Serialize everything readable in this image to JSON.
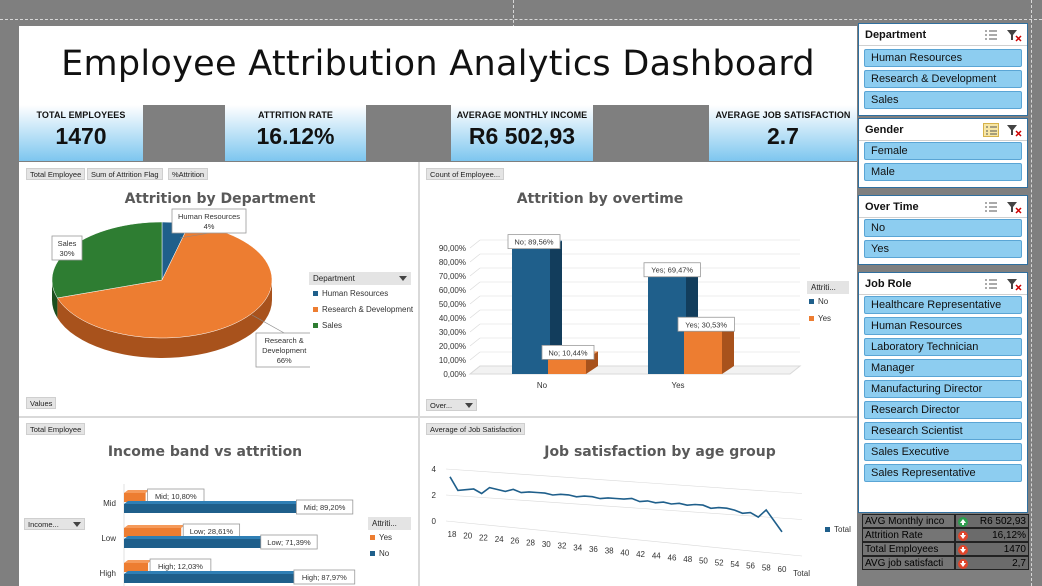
{
  "dashboard": {
    "title": "Employee Attribution Analytics Dashboard"
  },
  "kpis": [
    {
      "label": "TOTAL EMPLOYEES",
      "value": "1470"
    },
    {
      "label": "ATTRITION RATE",
      "value": "16.12%"
    },
    {
      "label": "AVERAGE MONTHLY INCOME",
      "value": "R6 502,93"
    },
    {
      "label": "AVERAGE JOB SATISFACTION",
      "value": "2.7"
    }
  ],
  "pivot_buttons": {
    "pie_buttons": [
      "Total Employee",
      "Sum of Attrition Flag",
      "%Attrition"
    ],
    "pie_values": "Values",
    "overtime_button": "Count of Employee...",
    "overtime_axis": "Over...",
    "income_button": "Total Employee",
    "income_axis": "Income...",
    "age_button": "Average of Job Satisfaction"
  },
  "legends": {
    "department_title": "Department",
    "overtime_title": "Attriti...",
    "income_title": "Attriti...",
    "age_series": "Total"
  },
  "colors": {
    "blue": "#1f5f8b",
    "orange": "#ed7d31",
    "green": "#2e7d32",
    "slicer_item": "#8dcdf0",
    "kpi_blue": "#7dc6ef"
  },
  "chart_data": [
    {
      "type": "pie",
      "title": "Attrition by Department",
      "legend_title": "Department",
      "slices": [
        {
          "label": "Human Resources",
          "value": 4,
          "display": "4%",
          "color": "#1f5f8b"
        },
        {
          "label": "Research & Development",
          "value": 66,
          "display": "66%",
          "color": "#ed7d31"
        },
        {
          "label": "Sales",
          "value": 30,
          "display": "30%",
          "color": "#2e7d32"
        }
      ]
    },
    {
      "type": "bar",
      "title": "Attrition by overtime",
      "categories": [
        "No",
        "Yes"
      ],
      "series": [
        {
          "name": "No",
          "values": [
            89.56,
            69.47
          ],
          "labels": [
            "No; 89,56%",
            "Yes; 69,47%"
          ],
          "color": "#1f5f8b"
        },
        {
          "name": "Yes",
          "values": [
            10.44,
            30.53
          ],
          "labels": [
            "No; 10,44%",
            "Yes; 30,53%"
          ],
          "color": "#ed7d31"
        }
      ],
      "ylim": [
        0,
        90
      ],
      "yticks": [
        "0,00%",
        "10,00%",
        "20,00%",
        "30,00%",
        "40,00%",
        "50,00%",
        "60,00%",
        "70,00%",
        "80,00%",
        "90,00%"
      ],
      "legend": "right"
    },
    {
      "type": "bar",
      "orientation": "horizontal",
      "title": "Income band vs attrition",
      "categories": [
        "Mid",
        "Low",
        "High"
      ],
      "series": [
        {
          "name": "Yes",
          "values": [
            10.8,
            28.61,
            12.03
          ],
          "labels": [
            "Mid; 10,80%",
            "Low; 28,61%",
            "High; 12,03%"
          ],
          "color": "#ed7d31"
        },
        {
          "name": "No",
          "values": [
            89.2,
            71.39,
            87.97
          ],
          "labels": [
            "Mid; 89,20%",
            "Low; 71,39%",
            "High; 87,97%"
          ],
          "color": "#1f5f8b"
        }
      ],
      "legend": "right"
    },
    {
      "type": "line",
      "title": "Job satisfaction by age group",
      "x": [
        18,
        19,
        20,
        21,
        22,
        23,
        24,
        25,
        26,
        27,
        28,
        29,
        30,
        31,
        32,
        33,
        34,
        35,
        36,
        37,
        38,
        39,
        40,
        41,
        42,
        43,
        44,
        45,
        46,
        47,
        48,
        49,
        50,
        51,
        52,
        53,
        54,
        55,
        56,
        57,
        58,
        59,
        60
      ],
      "x_tick_labels": [
        "18",
        "20",
        "22",
        "24",
        "26",
        "28",
        "30",
        "32",
        "34",
        "36",
        "38",
        "40",
        "42",
        "44",
        "46",
        "48",
        "50",
        "52",
        "54",
        "56",
        "58",
        "60"
      ],
      "series": [
        {
          "name": "Total",
          "values": [
            3.4,
            2.4,
            2.5,
            2.6,
            2.3,
            2.8,
            2.7,
            2.6,
            2.8,
            2.6,
            2.7,
            2.7,
            2.7,
            2.6,
            2.7,
            2.7,
            2.6,
            2.7,
            2.7,
            2.6,
            2.7,
            2.7,
            2.7,
            2.8,
            2.6,
            2.7,
            2.6,
            2.7,
            2.6,
            2.7,
            2.6,
            2.7,
            2.7,
            2.5,
            2.6,
            2.6,
            2.5,
            2.3,
            2.4,
            2.1,
            2.7,
            1.9,
            1.1
          ],
          "color": "#1f5f8b"
        }
      ],
      "yticks": [
        "0",
        "2",
        "4"
      ],
      "ylim": [
        0,
        4
      ],
      "xlabel": "Total",
      "legend": "right"
    }
  ],
  "slicers": [
    {
      "title": "Department",
      "items": [
        "Human Resources",
        "Research & Development",
        "Sales"
      ]
    },
    {
      "title": "Gender",
      "items": [
        "Female",
        "Male"
      ]
    },
    {
      "title": "Over Time",
      "items": [
        "No",
        "Yes"
      ]
    },
    {
      "title": "Job Role",
      "items": [
        "Healthcare Representative",
        "Human Resources",
        "Laboratory Technician",
        "Manager",
        "Manufacturing Director",
        "Research Director",
        "Research Scientist",
        "Sales Executive",
        "Sales Representative"
      ]
    }
  ],
  "summary_table": [
    {
      "label": "AVG Monthly inco",
      "value": "R6 502,93",
      "icon": "up-arrow-icon",
      "icon_color": "#2e9e4f"
    },
    {
      "label": "Attrition Rate",
      "value": "16,12%",
      "icon": "down-arrow-icon",
      "icon_color": "#e0452b"
    },
    {
      "label": "Total Employees",
      "value": "1470",
      "icon": "down-arrow-icon",
      "icon_color": "#e0452b"
    },
    {
      "label": "AVG job satisfacti",
      "value": "2,7",
      "icon": "down-arrow-icon",
      "icon_color": "#e0452b"
    }
  ]
}
